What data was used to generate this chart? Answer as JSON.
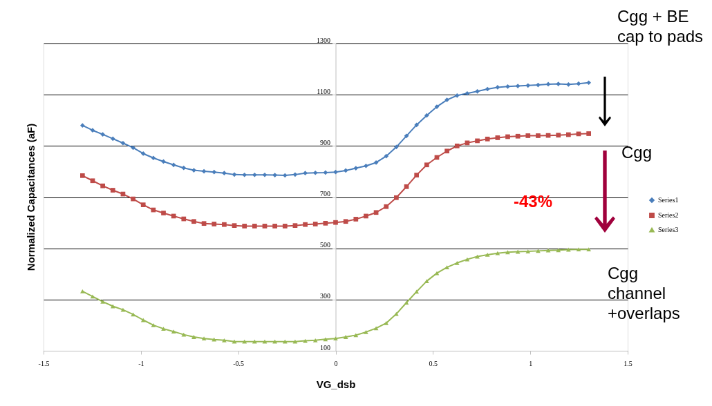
{
  "chart_data": {
    "type": "line",
    "xlabel": "VG_dsb",
    "ylabel": "Normalized Capacitances (aF)",
    "x": [
      -1.3,
      -1.248,
      -1.196,
      -1.144,
      -1.092,
      -1.04,
      -0.988,
      -0.936,
      -0.884,
      -0.832,
      -0.78,
      -0.728,
      -0.676,
      -0.624,
      -0.572,
      -0.52,
      -0.468,
      -0.416,
      -0.364,
      -0.312,
      -0.26,
      -0.208,
      -0.156,
      -0.104,
      -0.052,
      0,
      0.052,
      0.104,
      0.156,
      0.208,
      0.26,
      0.312,
      0.364,
      0.416,
      0.468,
      0.52,
      0.572,
      0.624,
      0.676,
      0.728,
      0.78,
      0.832,
      0.884,
      0.936,
      0.988,
      1.04,
      1.092,
      1.144,
      1.196,
      1.248,
      1.3
    ],
    "series": [
      {
        "name": "Series1",
        "color": "#4a7ebb",
        "marker": "diamond",
        "values": [
          980,
          961,
          945,
          928,
          911,
          893,
          870,
          853,
          839,
          826,
          814,
          805,
          801,
          798,
          794,
          788,
          787,
          787,
          787,
          786,
          785,
          788,
          794,
          795,
          796,
          798,
          804,
          813,
          822,
          835,
          860,
          896,
          939,
          982,
          1019,
          1053,
          1080,
          1097,
          1105,
          1113,
          1122,
          1129,
          1132,
          1134,
          1136,
          1138,
          1141,
          1142,
          1140,
          1143,
          1147
        ]
      },
      {
        "name": "Series2",
        "color": "#be4b48",
        "marker": "square",
        "values": [
          784,
          764,
          744,
          727,
          712,
          693,
          670,
          650,
          638,
          626,
          615,
          605,
          597,
          595,
          593,
          589,
          587,
          587,
          587,
          587,
          587,
          589,
          593,
          595,
          598,
          601,
          605,
          614,
          626,
          640,
          663,
          698,
          741,
          786,
          826,
          855,
          880,
          900,
          912,
          920,
          927,
          932,
          936,
          938,
          940,
          940,
          941,
          942,
          944,
          947,
          948
        ]
      },
      {
        "name": "Series3",
        "color": "#98b954",
        "marker": "triangle",
        "values": [
          332,
          312,
          292,
          274,
          260,
          242,
          220,
          200,
          186,
          175,
          163,
          154,
          148,
          144,
          141,
          136,
          136,
          136,
          136,
          136,
          136,
          136,
          139,
          141,
          145,
          148,
          154,
          161,
          173,
          188,
          208,
          244,
          288,
          331,
          372,
          403,
          426,
          443,
          457,
          468,
          475,
          481,
          485,
          487,
          488,
          490,
          492,
          493,
          495,
          496,
          496
        ]
      }
    ],
    "xlim": [
      -1.5,
      1.5
    ],
    "xticks": [
      -1.5,
      -1,
      -0.5,
      0,
      0.5,
      1,
      1.5
    ],
    "ylim": [
      100,
      1300
    ],
    "yticks": [
      100,
      300,
      500,
      700,
      900,
      1100,
      1300
    ],
    "grid": "y",
    "legend": "right",
    "line_style": "solid",
    "annotations": [
      "Cgg + BE\ncap to pads",
      "Cgg",
      "-43%",
      "Cgg\nchannel\n+overlaps"
    ]
  }
}
